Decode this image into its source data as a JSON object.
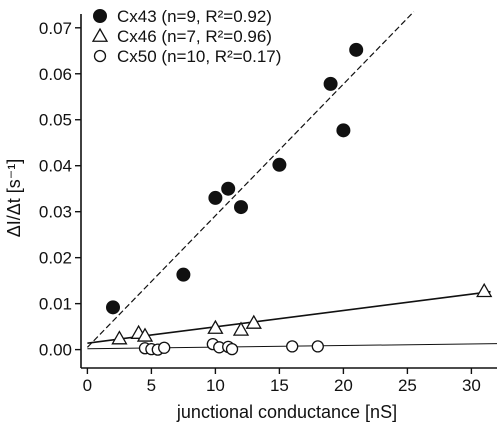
{
  "chart_data": {
    "type": "scatter",
    "xlabel": "junctional conductance [nS]",
    "ylabel": "ΔI/Δt [s⁻¹]",
    "xlim": [
      -0.5,
      32
    ],
    "ylim": [
      -0.004,
      0.073
    ],
    "xticks": [
      "0",
      "5",
      "10",
      "15",
      "20",
      "25",
      "30"
    ],
    "xtick_values": [
      0,
      5,
      10,
      15,
      20,
      25,
      30
    ],
    "yticks": [
      "0.00",
      "0.01",
      "0.02",
      "0.03",
      "0.04",
      "0.05",
      "0.06",
      "0.07"
    ],
    "ytick_values": [
      0,
      0.01,
      0.02,
      0.03,
      0.04,
      0.05,
      0.06,
      0.07
    ],
    "legend_position": "top-left",
    "series": [
      {
        "name": "Cx43 (n=9, R²=0.92)",
        "marker": "filled-circle",
        "points": [
          [
            2,
            0.0092
          ],
          [
            7.5,
            0.0163
          ],
          [
            10,
            0.033
          ],
          [
            11,
            0.035
          ],
          [
            12,
            0.031
          ],
          [
            15,
            0.0402
          ],
          [
            19,
            0.0578
          ],
          [
            20,
            0.0477
          ],
          [
            21,
            0.0652
          ]
        ],
        "fit": [
          [
            0,
            0.0005
          ],
          [
            25.5,
            0.0735
          ]
        ]
      },
      {
        "name": "Cx46 (n=7, R²=0.96)",
        "marker": "open-triangle",
        "points": [
          [
            2.5,
            0.0024
          ],
          [
            4,
            0.0036
          ],
          [
            4.5,
            0.003
          ],
          [
            10,
            0.0047
          ],
          [
            12,
            0.0043
          ],
          [
            13,
            0.0058
          ],
          [
            31,
            0.0127
          ]
        ],
        "fit": [
          [
            0,
            0.0014
          ],
          [
            31.5,
            0.0126
          ]
        ]
      },
      {
        "name": "Cx50 (n=10, R²=0.17)",
        "marker": "open-circle",
        "points": [
          [
            4.5,
            0.0003
          ],
          [
            5,
            0.0001
          ],
          [
            5.5,
            0
          ],
          [
            6,
            0.0004
          ],
          [
            9.8,
            0.0012
          ],
          [
            10.3,
            0.0005
          ],
          [
            11,
            0.0006
          ],
          [
            11.3,
            0.0001
          ],
          [
            16,
            0.0007
          ],
          [
            18,
            0.0007
          ]
        ],
        "fit": [
          [
            0,
            0.0002
          ],
          [
            32,
            0.0013
          ]
        ]
      }
    ]
  }
}
